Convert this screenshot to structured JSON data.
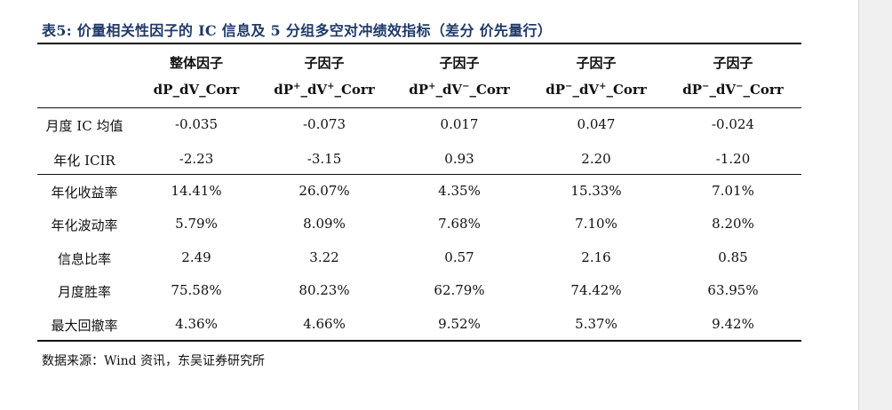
{
  "caption": "表5: 价量相关性因子的 IC 信息及 5 分组多空对冲绩效指标（差分 价先量行）",
  "columns": [
    {
      "group": "整体因子",
      "code_a": "dP_dV_Corr",
      "sup1": "",
      "mid": "",
      "sup2": "",
      "tail": ""
    },
    {
      "group": "子因子",
      "code_a": "dP",
      "sup1": "+",
      "mid": "_dV",
      "sup2": "+",
      "tail": "_Corr"
    },
    {
      "group": "子因子",
      "code_a": "dP",
      "sup1": "+",
      "mid": "_dV",
      "sup2": "−",
      "tail": "_Corr"
    },
    {
      "group": "子因子",
      "code_a": "dP",
      "sup1": "−",
      "mid": "_dV",
      "sup2": "+",
      "tail": "_Corr"
    },
    {
      "group": "子因子",
      "code_a": "dP",
      "sup1": "−",
      "mid": "_dV",
      "sup2": "−",
      "tail": "_Corr"
    }
  ],
  "rows": [
    {
      "label": "月度 IC 均值",
      "values": [
        "-0.035",
        "-0.073",
        "0.017",
        "0.047",
        "-0.024"
      ]
    },
    {
      "label": "年化 ICIR",
      "values": [
        "-2.23",
        "-3.15",
        "0.93",
        "2.20",
        "-1.20"
      ]
    },
    {
      "label": "年化收益率",
      "values": [
        "14.41%",
        "26.07%",
        "4.35%",
        "15.33%",
        "7.01%"
      ]
    },
    {
      "label": "年化波动率",
      "values": [
        "5.79%",
        "8.09%",
        "7.68%",
        "7.10%",
        "8.20%"
      ]
    },
    {
      "label": "信息比率",
      "values": [
        "2.49",
        "3.22",
        "0.57",
        "2.16",
        "0.85"
      ]
    },
    {
      "label": "月度胜率",
      "values": [
        "75.58%",
        "80.23%",
        "62.79%",
        "74.42%",
        "63.95%"
      ]
    },
    {
      "label": "最大回撤率",
      "values": [
        "4.36%",
        "4.66%",
        "9.52%",
        "5.37%",
        "9.42%"
      ]
    }
  ],
  "source": "数据来源：Wind 资讯，东吴证券研究所"
}
